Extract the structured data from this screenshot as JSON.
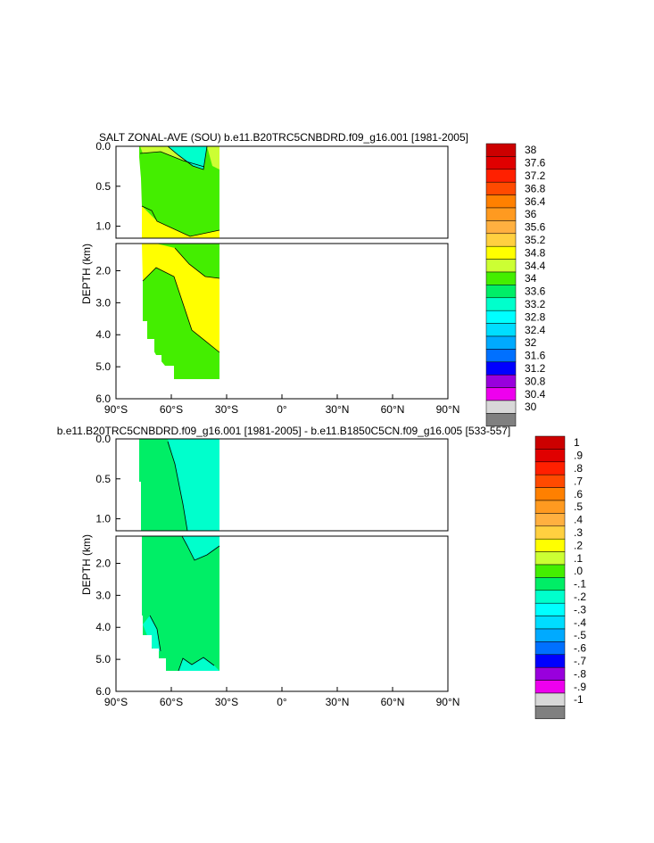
{
  "chart_data": [
    {
      "type": "heatmap",
      "title": "SALT ZONAL-AVE (SOU) b.e11.B20TRC5CNBDRD.f09_g16.001 [1981-2005]",
      "ylabel": "DEPTH (km)",
      "xlabel": "",
      "x_ticks": [
        "90°S",
        "60°S",
        "30°S",
        "0°",
        "30°N",
        "60°N",
        "90°N"
      ],
      "xlim": [
        -90,
        90
      ],
      "upper_panel": {
        "ylim": [
          0,
          1.15
        ],
        "y_ticks": [
          "0.0",
          "0.5",
          "1.0"
        ]
      },
      "lower_panel": {
        "ylim": [
          1.15,
          6.0
        ],
        "y_ticks": [
          "2.0",
          "3.0",
          "4.0",
          "5.0",
          "6.0"
        ]
      },
      "data_extent_lat": [
        -75,
        -33
      ],
      "regions": [
        {
          "level": 33.6,
          "description": "surface layer 57S-43S"
        },
        {
          "level": 34.4,
          "description": "upper ocean north of 68S"
        },
        {
          "level": 34.8,
          "description": "intermediate / deep water"
        },
        {
          "level": 34.4,
          "description": "bottom water south of 60S"
        }
      ],
      "colorbar": {
        "labels": [
          "38",
          "37.6",
          "37.2",
          "36.8",
          "36.4",
          "36",
          "35.6",
          "35.2",
          "34.8",
          "34.4",
          "34",
          "33.6",
          "33.2",
          "32.8",
          "32.4",
          "32",
          "31.6",
          "31.2",
          "30.8",
          "30.4",
          "30"
        ],
        "colors": [
          "#cc0000",
          "#e00000",
          "#ff2000",
          "#ff4a00",
          "#ff8000",
          "#ff9a20",
          "#ffb040",
          "#ffd040",
          "#ffff00",
          "#ccff33",
          "#44ee00",
          "#00ee66",
          "#00ffcc",
          "#00ffff",
          "#00ddff",
          "#00aaff",
          "#0070ff",
          "#0000ff",
          "#9900dd",
          "#ee00ee",
          "#d8d8d8",
          "#808080"
        ]
      }
    },
    {
      "type": "heatmap",
      "title": "b.e11.B20TRC5CNBDRD.f09_g16.001 [1981-2005] - b.e11.B1850C5CN.f09_g16.005 [533-557]",
      "ylabel": "DEPTH (km)",
      "xlabel": "",
      "x_ticks": [
        "90°S",
        "60°S",
        "30°S",
        "0°",
        "30°N",
        "60°N",
        "90°N"
      ],
      "xlim": [
        -90,
        90
      ],
      "upper_panel": {
        "ylim": [
          0,
          1.15
        ],
        "y_ticks": [
          "0.0",
          "0.5",
          "1.0"
        ]
      },
      "lower_panel": {
        "ylim": [
          1.15,
          6.0
        ],
        "y_ticks": [
          "2.0",
          "3.0",
          "4.0",
          "5.0",
          "6.0"
        ]
      },
      "data_extent_lat": [
        -75,
        -33
      ],
      "regions": [
        {
          "level": 0.1,
          "description": "most of section"
        },
        {
          "level": 0.0,
          "description": "upper ocean 55S-33S"
        }
      ],
      "colorbar": {
        "labels": [
          "1",
          ".9",
          ".8",
          ".7",
          ".6",
          ".5",
          ".4",
          ".3",
          ".2",
          ".1",
          ".0",
          "-.1",
          "-.2",
          "-.3",
          "-.4",
          "-.5",
          "-.6",
          "-.7",
          "-.8",
          "-.9",
          "-1"
        ],
        "colors": [
          "#cc0000",
          "#e00000",
          "#ff2000",
          "#ff4a00",
          "#ff8000",
          "#ff9a20",
          "#ffb040",
          "#ffd040",
          "#ffff00",
          "#ccff33",
          "#44ee00",
          "#00ee66",
          "#00ffcc",
          "#00ffff",
          "#00ddff",
          "#00aaff",
          "#0070ff",
          "#0000ff",
          "#9900dd",
          "#ee00ee",
          "#d8d8d8",
          "#808080"
        ]
      }
    }
  ]
}
